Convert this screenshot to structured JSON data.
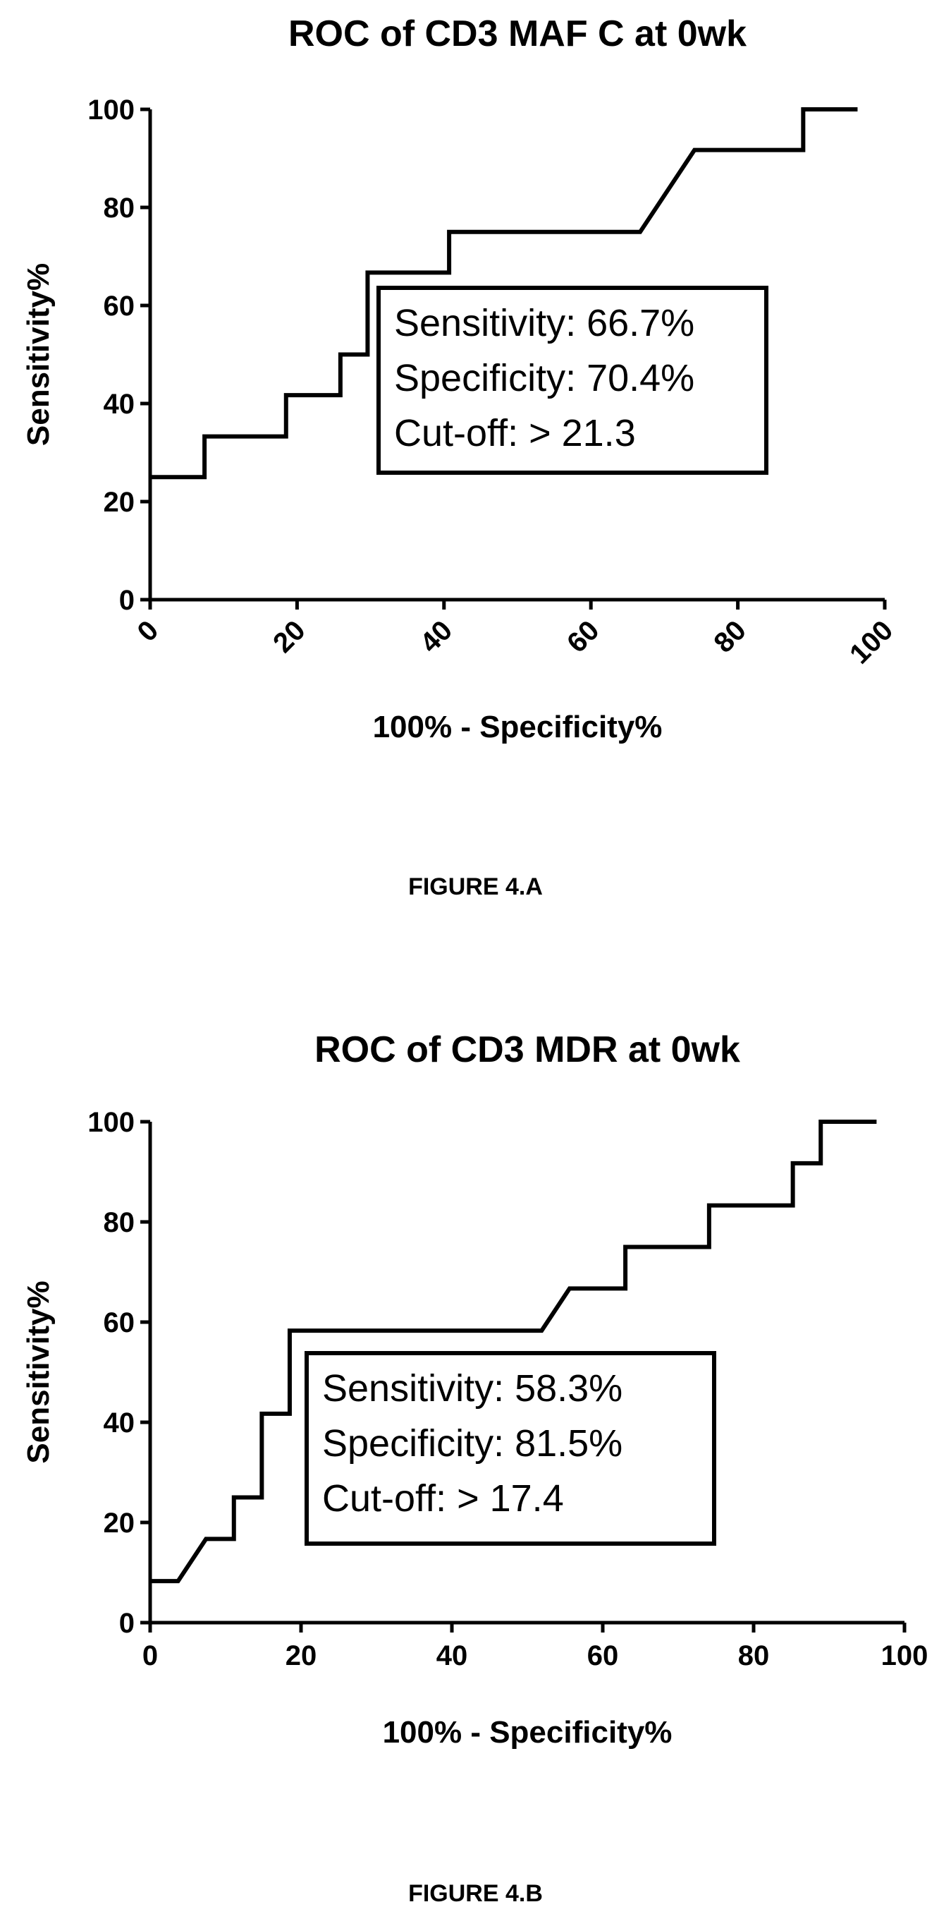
{
  "figures": [
    {
      "caption": "FIGURE 4.A",
      "stats": [
        "Sensitivity: 66.7%",
        "Specificity: 70.4%",
        "Cut-off: > 21.3"
      ]
    },
    {
      "caption": "FIGURE 4.B",
      "stats": [
        "Sensitivity: 58.3%",
        "Specificity: 81.5%",
        "Cut-off: > 17.4"
      ]
    }
  ],
  "chart_data": [
    {
      "type": "line",
      "title": "ROC of CD3 MAF C at 0wk",
      "xlabel": "100% - Specificity%",
      "ylabel": "Sensitivity%",
      "xlim": [
        0,
        100
      ],
      "ylim": [
        0,
        100
      ],
      "xticks": [
        "0",
        "20",
        "40",
        "60",
        "80",
        "100"
      ],
      "yticks": [
        "0",
        "20",
        "40",
        "60",
        "80",
        "100"
      ],
      "xtick_rotation": -45,
      "grid": false,
      "series": [
        {
          "x": [
            0,
            7.4,
            7.4,
            18.5,
            18.5,
            25.9,
            25.9,
            29.6,
            29.6,
            40.7,
            40.7,
            66.7,
            74.1,
            88.9,
            88.9,
            96.3
          ],
          "y": [
            25,
            25,
            33.3,
            33.3,
            41.7,
            41.7,
            50,
            50,
            66.7,
            66.7,
            75,
            75,
            91.7,
            91.7,
            100,
            100
          ]
        }
      ]
    },
    {
      "type": "line",
      "title": "ROC of CD3 MDR at 0wk",
      "xlabel": "100% - Specificity%",
      "ylabel": "Sensitivity%",
      "xlim": [
        0,
        100
      ],
      "ylim": [
        0,
        100
      ],
      "xticks": [
        "0",
        "20",
        "40",
        "60",
        "80",
        "100"
      ],
      "yticks": [
        "0",
        "20",
        "40",
        "60",
        "80",
        "100"
      ],
      "xtick_rotation": 0,
      "grid": false,
      "series": [
        {
          "x": [
            0,
            3.7,
            7.4,
            11.1,
            11.1,
            14.8,
            14.8,
            18.5,
            18.5,
            51.9,
            55.6,
            63,
            63,
            74.1,
            74.1,
            85.2,
            85.2,
            88.9,
            88.9,
            96.3
          ],
          "y": [
            8.3,
            8.3,
            16.7,
            16.7,
            25,
            25,
            41.7,
            41.7,
            58.3,
            58.3,
            66.7,
            66.7,
            75,
            75,
            83.3,
            83.3,
            91.7,
            91.7,
            100,
            100
          ]
        }
      ]
    }
  ]
}
